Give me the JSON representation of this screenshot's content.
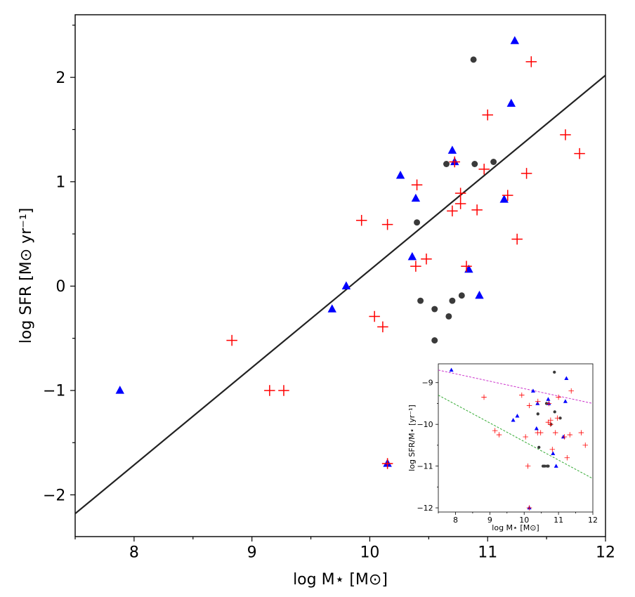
{
  "chart_data": [
    {
      "type": "scatter",
      "title": "",
      "xlabel": "log M⋆ [M⊙]",
      "ylabel": "log SFR [M⊙ yr⁻¹]",
      "xlim": [
        7.5,
        12.0
      ],
      "ylim": [
        -2.4,
        2.6
      ],
      "xticks": [
        8,
        9,
        10,
        11,
        12
      ],
      "xtick_labels": [
        "8",
        "9",
        "10",
        "11",
        "12"
      ],
      "yticks": [
        -2,
        -1,
        0,
        1,
        2
      ],
      "ytick_labels": [
        "−2",
        "−1",
        "0",
        "1",
        "2"
      ],
      "grid": false,
      "fit_line": {
        "x": [
          7.5,
          12.0
        ],
        "y": [
          -2.18,
          2.02
        ],
        "color": "#222222"
      },
      "series": [
        {
          "marker": "triangle",
          "color": "#0000ff",
          "points": [
            [
              7.88,
              -1.0
            ],
            [
              9.68,
              -0.22
            ],
            [
              9.8,
              0.0
            ],
            [
              10.15,
              -1.7
            ],
            [
              10.26,
              1.06
            ],
            [
              10.36,
              0.28
            ],
            [
              10.39,
              0.84
            ],
            [
              10.7,
              1.3
            ],
            [
              10.72,
              1.19
            ],
            [
              10.84,
              0.16
            ],
            [
              10.93,
              -0.09
            ],
            [
              11.14,
              0.83
            ],
            [
              11.2,
              1.75
            ],
            [
              11.23,
              2.35
            ]
          ]
        },
        {
          "marker": "circle",
          "color": "#3a3a3a",
          "points": [
            [
              10.4,
              0.61
            ],
            [
              10.43,
              -0.14
            ],
            [
              10.55,
              -0.22
            ],
            [
              10.55,
              -0.52
            ],
            [
              10.65,
              1.17
            ],
            [
              10.67,
              -0.29
            ],
            [
              10.7,
              -0.14
            ],
            [
              10.78,
              -0.09
            ],
            [
              10.88,
              2.17
            ],
            [
              10.89,
              1.17
            ],
            [
              11.05,
              1.19
            ]
          ]
        },
        {
          "marker": "plus",
          "color": "#ff0000",
          "points": [
            [
              8.83,
              -0.52
            ],
            [
              9.15,
              -1.0
            ],
            [
              9.27,
              -1.0
            ],
            [
              9.93,
              0.63
            ],
            [
              10.04,
              -0.29
            ],
            [
              10.11,
              -0.39
            ],
            [
              10.15,
              0.59
            ],
            [
              10.15,
              -1.7
            ],
            [
              10.39,
              0.19
            ],
            [
              10.4,
              0.97
            ],
            [
              10.48,
              0.26
            ],
            [
              10.7,
              0.72
            ],
            [
              10.72,
              1.19
            ],
            [
              10.77,
              0.79
            ],
            [
              10.77,
              0.89
            ],
            [
              10.82,
              0.19
            ],
            [
              10.91,
              0.73
            ],
            [
              10.97,
              1.12
            ],
            [
              11.0,
              1.64
            ],
            [
              11.17,
              0.87
            ],
            [
              11.25,
              0.45
            ],
            [
              11.33,
              1.08
            ],
            [
              11.37,
              2.15
            ],
            [
              11.66,
              1.45
            ],
            [
              11.78,
              1.27
            ]
          ]
        }
      ]
    },
    {
      "type": "scatter",
      "title": "",
      "xlabel": "log M⋆ [M⊙]",
      "ylabel": "log SFR/M⋆ [yr⁻¹]",
      "xlim": [
        7.5,
        12.0
      ],
      "ylim": [
        -12.1,
        -8.55
      ],
      "xticks": [
        8,
        9,
        10,
        11,
        12
      ],
      "xtick_labels": [
        "8",
        "9",
        "10",
        "11",
        "12"
      ],
      "yticks": [
        -12,
        -11,
        -10,
        -9
      ],
      "ytick_labels": [
        "−12",
        "−11",
        "−10",
        "−9"
      ],
      "grid": false,
      "ref_lines": [
        {
          "x": [
            7.5,
            12.0
          ],
          "y": [
            -8.7,
            -9.5
          ],
          "color": "#cc33cc",
          "dash": true
        },
        {
          "x": [
            7.5,
            12.0
          ],
          "y": [
            -9.3,
            -11.3
          ],
          "color": "#33aa33",
          "dash": true
        }
      ],
      "series": [
        {
          "marker": "triangle",
          "color": "#0000ff",
          "points": [
            [
              7.88,
              -8.7
            ],
            [
              9.68,
              -9.9
            ],
            [
              9.8,
              -9.8
            ],
            [
              10.15,
              -12.0
            ],
            [
              10.26,
              -9.2
            ],
            [
              10.36,
              -10.1
            ],
            [
              10.39,
              -9.5
            ],
            [
              10.7,
              -9.4
            ],
            [
              10.72,
              -9.5
            ],
            [
              10.84,
              -10.7
            ],
            [
              10.93,
              -11.0
            ],
            [
              11.14,
              -10.3
            ],
            [
              11.2,
              -9.45
            ],
            [
              11.23,
              -8.9
            ]
          ]
        },
        {
          "marker": "circle",
          "color": "#3a3a3a",
          "points": [
            [
              10.4,
              -9.75
            ],
            [
              10.43,
              -10.55
            ],
            [
              10.55,
              -11.0
            ],
            [
              10.6,
              -11.0
            ],
            [
              10.65,
              -9.5
            ],
            [
              10.67,
              -11.0
            ],
            [
              10.7,
              -11.0
            ],
            [
              10.78,
              -10.0
            ],
            [
              10.88,
              -8.75
            ],
            [
              10.89,
              -9.7
            ],
            [
              11.05,
              -9.85
            ]
          ]
        },
        {
          "marker": "plus",
          "color": "#ff0000",
          "points": [
            [
              8.83,
              -9.35
            ],
            [
              9.15,
              -10.15
            ],
            [
              9.27,
              -10.25
            ],
            [
              9.93,
              -9.3
            ],
            [
              10.04,
              -10.3
            ],
            [
              10.11,
              -11.0
            ],
            [
              10.15,
              -9.55
            ],
            [
              10.15,
              -12.0
            ],
            [
              10.39,
              -10.2
            ],
            [
              10.4,
              -9.45
            ],
            [
              10.48,
              -10.2
            ],
            [
              10.7,
              -9.95
            ],
            [
              10.72,
              -9.5
            ],
            [
              10.77,
              -9.9
            ],
            [
              10.77,
              -10.0
            ],
            [
              10.82,
              -10.6
            ],
            [
              10.91,
              -10.2
            ],
            [
              10.97,
              -9.85
            ],
            [
              11.0,
              -9.35
            ],
            [
              11.17,
              -10.3
            ],
            [
              11.25,
              -10.8
            ],
            [
              11.33,
              -10.25
            ],
            [
              11.37,
              -9.2
            ],
            [
              11.66,
              -10.2
            ],
            [
              11.78,
              -10.5
            ]
          ]
        }
      ]
    }
  ]
}
